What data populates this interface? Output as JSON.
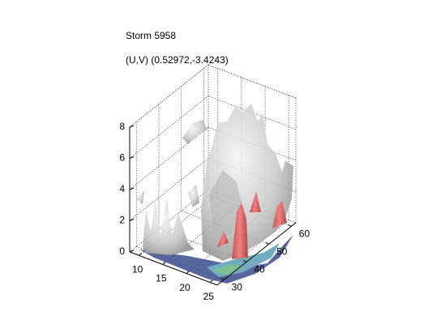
{
  "chart_data": {
    "type": "isosurface",
    "title": "Storm 5958",
    "subtitle": "(U,V) (0.52972,-3.4243)",
    "xlim": [
      8,
      26.5
    ],
    "xticks": [
      10,
      15,
      20,
      25
    ],
    "ylim": [
      27,
      62
    ],
    "yticks": [
      30,
      40,
      50,
      60
    ],
    "zlim": [
      0,
      8
    ],
    "zticks": [
      0,
      2,
      4,
      6,
      8
    ],
    "grid": true
  }
}
